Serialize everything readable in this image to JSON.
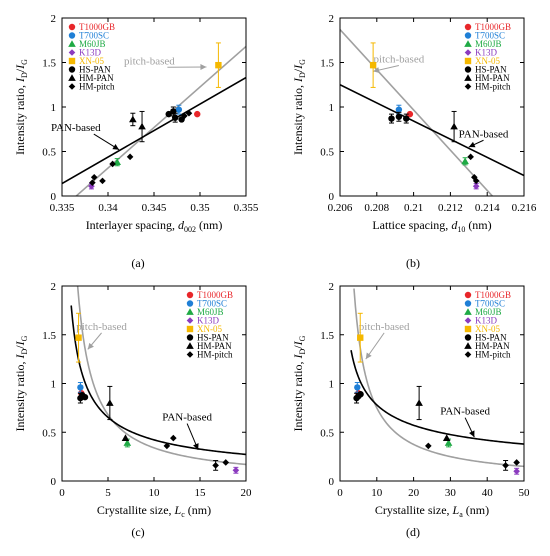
{
  "colors": {
    "T1000GB": "#e8262a",
    "T700SC": "#1f7fd6",
    "M60JB": "#1faa45",
    "K13D": "#8b3bbf",
    "XN-05": "#f5b800",
    "black": "#000000",
    "pitch_fit": "#a0a0a0",
    "pan_fit": "#000000"
  },
  "legend": [
    {
      "label": "T1000GB",
      "marker": "circle",
      "color_key": "T1000GB"
    },
    {
      "label": "T700SC",
      "marker": "circle",
      "color_key": "T700SC"
    },
    {
      "label": "M60JB",
      "marker": "triangle",
      "color_key": "M60JB"
    },
    {
      "label": "K13D",
      "marker": "diamond",
      "color_key": "K13D"
    },
    {
      "label": "XN-05",
      "marker": "square",
      "color_key": "XN-05"
    },
    {
      "label": "HS-PAN",
      "marker": "circle",
      "color_key": "black"
    },
    {
      "label": "HM-PAN",
      "marker": "triangle",
      "color_key": "black"
    },
    {
      "label": "HM-pitch",
      "marker": "diamond",
      "color_key": "black"
    }
  ],
  "chart_data": [
    {
      "type": "scatter",
      "panel": "(a)",
      "xlabel_main": "Interlayer spacing, ",
      "xlabel_sym": "d",
      "xlabel_sub": "002",
      "xlabel_unit": " (nm)",
      "ylabel_main": "Intensity ratio, ",
      "ylabel_sym1": "I",
      "ylabel_sub1": "D",
      "ylabel_slash": "/",
      "ylabel_sym2": "I",
      "ylabel_sub2": "G",
      "xlim": [
        0.335,
        0.355
      ],
      "ylim": [
        0,
        2
      ],
      "xticks": [
        0.335,
        0.34,
        0.345,
        0.35,
        0.355
      ],
      "xtick_labels": [
        "0.335",
        "0.34",
        "0.345",
        "0.35",
        "0.355"
      ],
      "yticks": [
        0,
        0.5,
        1,
        1.5,
        2
      ],
      "ytick_labels": [
        "0",
        "0.5",
        "1",
        "1.5",
        "2"
      ],
      "legend_position": "top-left",
      "fits": [
        {
          "label": "pitch-based",
          "color_key": "pitch_fit",
          "kind": "linear",
          "x": [
            0.336,
            0.355
          ],
          "y": [
            -0.05,
            1.68
          ]
        },
        {
          "label": "PAN-based",
          "color_key": "pan_fit",
          "kind": "linear",
          "x": [
            0.335,
            0.355
          ],
          "y": [
            0.14,
            1.33
          ]
        }
      ],
      "annotations": [
        {
          "text": "pitch-based",
          "color_key": "pitch_fit",
          "x": 0.3445,
          "y": 1.48,
          "arrow_to": [
            0.3507,
            1.45
          ]
        },
        {
          "text": "PAN-based",
          "color_key": "black",
          "x": 0.3365,
          "y": 0.73,
          "arrow_to": [
            0.3412,
            0.52
          ]
        }
      ],
      "points": [
        {
          "series": "T1000GB",
          "marker": "circle",
          "color_key": "T1000GB",
          "x": 0.3497,
          "y": 0.92
        },
        {
          "series": "T700SC",
          "marker": "circle",
          "color_key": "T700SC",
          "x": 0.3477,
          "y": 0.97,
          "err": 0.05
        },
        {
          "series": "M60JB",
          "marker": "triangle",
          "color_key": "M60JB",
          "x": 0.341,
          "y": 0.38,
          "err": 0.04
        },
        {
          "series": "K13D",
          "marker": "diamond",
          "color_key": "K13D",
          "x": 0.3382,
          "y": 0.11,
          "err": 0.03
        },
        {
          "series": "XN-05",
          "marker": "square",
          "color_key": "XN-05",
          "x": 0.352,
          "y": 1.47,
          "err": 0.25
        },
        {
          "series": "HS-PAN",
          "marker": "circle",
          "color_key": "black",
          "x": 0.3466,
          "y": 0.92
        },
        {
          "series": "HS-PAN",
          "marker": "circle",
          "color_key": "black",
          "x": 0.3473,
          "y": 0.88,
          "err": 0.05
        },
        {
          "series": "HS-PAN",
          "marker": "circle",
          "color_key": "black",
          "x": 0.348,
          "y": 0.86
        },
        {
          "series": "HS-PAN",
          "marker": "circle",
          "color_key": "black",
          "x": 0.3471,
          "y": 0.95,
          "err": 0.05
        },
        {
          "series": "HM-PAN",
          "marker": "triangle",
          "color_key": "black",
          "x": 0.3427,
          "y": 0.86,
          "err": 0.07
        },
        {
          "series": "HM-PAN",
          "marker": "triangle",
          "color_key": "black",
          "x": 0.3437,
          "y": 0.78,
          "err": 0.17
        },
        {
          "series": "HM-pitch",
          "marker": "diamond",
          "color_key": "black",
          "x": 0.3385,
          "y": 0.21
        },
        {
          "series": "HM-pitch",
          "marker": "diamond",
          "color_key": "black",
          "x": 0.3383,
          "y": 0.15
        },
        {
          "series": "HM-pitch",
          "marker": "diamond",
          "color_key": "black",
          "x": 0.3394,
          "y": 0.17
        },
        {
          "series": "HM-pitch",
          "marker": "diamond",
          "color_key": "black",
          "x": 0.3405,
          "y": 0.36
        },
        {
          "series": "HM-pitch",
          "marker": "diamond",
          "color_key": "black",
          "x": 0.3424,
          "y": 0.44
        },
        {
          "series": "HM-pitch",
          "marker": "diamond",
          "color_key": "black",
          "x": 0.3483,
          "y": 0.9
        },
        {
          "series": "HM-pitch",
          "marker": "diamond",
          "color_key": "black",
          "x": 0.3488,
          "y": 0.93
        }
      ]
    },
    {
      "type": "scatter",
      "panel": "(b)",
      "xlabel_main": "Lattice spacing, ",
      "xlabel_sym": "d",
      "xlabel_sub": "10",
      "xlabel_unit": " (nm)",
      "ylabel_main": "Intensity ratio, ",
      "ylabel_sym1": "I",
      "ylabel_sub1": "D",
      "ylabel_slash": "/",
      "ylabel_sym2": "I",
      "ylabel_sub2": "G",
      "xlim": [
        0.206,
        0.216
      ],
      "ylim": [
        0,
        2
      ],
      "xticks": [
        0.206,
        0.208,
        0.21,
        0.212,
        0.214,
        0.216
      ],
      "xtick_labels": [
        "0.206",
        "0.208",
        "0.21",
        "0.212",
        "0.214",
        "0.216"
      ],
      "yticks": [
        0,
        0.5,
        1,
        1.5,
        2
      ],
      "ytick_labels": [
        "0",
        "0.5",
        "1",
        "1.5",
        "2"
      ],
      "legend_position": "top-right",
      "fits": [
        {
          "label": "pitch-based",
          "color_key": "pitch_fit",
          "kind": "linear",
          "x": [
            0.206,
            0.2145
          ],
          "y": [
            1.87,
            -0.05
          ]
        },
        {
          "label": "PAN-based",
          "color_key": "pan_fit",
          "kind": "linear",
          "x": [
            0.206,
            0.216
          ],
          "y": [
            1.25,
            0.23
          ]
        }
      ],
      "annotations": [
        {
          "text": "pitch-based",
          "color_key": "pitch_fit",
          "x": 0.2092,
          "y": 1.5,
          "arrow_to": [
            0.2078,
            1.4
          ]
        },
        {
          "text": "PAN-based",
          "color_key": "black",
          "x": 0.2138,
          "y": 0.66,
          "arrow_to": [
            0.213,
            0.55
          ]
        }
      ],
      "points": [
        {
          "series": "T1000GB",
          "marker": "circle",
          "color_key": "T1000GB",
          "x": 0.2098,
          "y": 0.92
        },
        {
          "series": "T700SC",
          "marker": "circle",
          "color_key": "T700SC",
          "x": 0.2092,
          "y": 0.97,
          "err": 0.05
        },
        {
          "series": "M60JB",
          "marker": "triangle",
          "color_key": "M60JB",
          "x": 0.2128,
          "y": 0.39,
          "err": 0.04
        },
        {
          "series": "K13D",
          "marker": "diamond",
          "color_key": "K13D",
          "x": 0.2134,
          "y": 0.11,
          "err": 0.03
        },
        {
          "series": "XN-05",
          "marker": "square",
          "color_key": "XN-05",
          "x": 0.2078,
          "y": 1.47,
          "err": 0.25
        },
        {
          "series": "HS-PAN",
          "marker": "circle",
          "color_key": "black",
          "x": 0.2088,
          "y": 0.87,
          "err": 0.05
        },
        {
          "series": "HS-PAN",
          "marker": "circle",
          "color_key": "black",
          "x": 0.2092,
          "y": 0.89,
          "err": 0.05
        },
        {
          "series": "HS-PAN",
          "marker": "circle",
          "color_key": "black",
          "x": 0.2096,
          "y": 0.87,
          "err": 0.05
        },
        {
          "series": "HM-PAN",
          "marker": "triangle",
          "color_key": "black",
          "x": 0.2122,
          "y": 0.78,
          "err": 0.17
        },
        {
          "series": "HM-pitch",
          "marker": "diamond",
          "color_key": "black",
          "x": 0.2131,
          "y": 0.44
        },
        {
          "series": "HM-pitch",
          "marker": "diamond",
          "color_key": "black",
          "x": 0.2134,
          "y": 0.17
        },
        {
          "series": "HM-pitch",
          "marker": "diamond",
          "color_key": "black",
          "x": 0.2133,
          "y": 0.21
        }
      ]
    },
    {
      "type": "scatter",
      "panel": "(c)",
      "xlabel_main": "Crystallite size, ",
      "xlabel_sym": "L",
      "xlabel_sub": "c",
      "xlabel_unit": " (nm)",
      "ylabel_main": "Intensity ratio, ",
      "ylabel_sym1": "I",
      "ylabel_sub1": "D",
      "ylabel_slash": "/",
      "ylabel_sym2": "I",
      "ylabel_sub2": "G",
      "xlim": [
        0,
        20
      ],
      "ylim": [
        0,
        2
      ],
      "xticks": [
        0,
        5,
        10,
        15,
        20
      ],
      "xtick_labels": [
        "0",
        "5",
        "10",
        "15",
        "20"
      ],
      "yticks": [
        0,
        0.5,
        1,
        1.5,
        2
      ],
      "ytick_labels": [
        "0",
        "0.5",
        "1",
        "1.5",
        "2"
      ],
      "legend_position": "top-right",
      "fits": [
        {
          "label": "pitch-based",
          "color_key": "pitch_fit",
          "kind": "power",
          "a": 3.4,
          "b": -1.0,
          "xrange": [
            1.7,
            20
          ]
        },
        {
          "label": "PAN-based",
          "color_key": "pan_fit",
          "kind": "power",
          "a": 1.8,
          "b": -0.63,
          "xrange": [
            1.0,
            20
          ]
        }
      ],
      "annotations": [
        {
          "text": "pitch-based",
          "color_key": "pitch_fit",
          "x": 4.3,
          "y": 1.55,
          "arrow_to": [
            2.8,
            1.35
          ]
        },
        {
          "text": "PAN-based",
          "color_key": "black",
          "x": 13.6,
          "y": 0.62,
          "arrow_to": [
            14.8,
            0.32
          ]
        }
      ],
      "points": [
        {
          "series": "T1000GB",
          "marker": "circle",
          "color_key": "T1000GB",
          "x": 2.1,
          "y": 0.9
        },
        {
          "series": "T700SC",
          "marker": "circle",
          "color_key": "T700SC",
          "x": 2.0,
          "y": 0.96,
          "err": 0.05
        },
        {
          "series": "M60JB",
          "marker": "triangle",
          "color_key": "M60JB",
          "x": 7.1,
          "y": 0.39,
          "err": 0.04
        },
        {
          "series": "K13D",
          "marker": "diamond",
          "color_key": "K13D",
          "x": 18.9,
          "y": 0.11,
          "err": 0.03
        },
        {
          "series": "XN-05",
          "marker": "square",
          "color_key": "XN-05",
          "x": 1.8,
          "y": 1.47,
          "err": 0.25
        },
        {
          "series": "HS-PAN",
          "marker": "circle",
          "color_key": "black",
          "x": 2.0,
          "y": 0.85,
          "err": 0.05
        },
        {
          "series": "HS-PAN",
          "marker": "circle",
          "color_key": "black",
          "x": 2.2,
          "y": 0.88
        },
        {
          "series": "HS-PAN",
          "marker": "circle",
          "color_key": "black",
          "x": 2.5,
          "y": 0.86
        },
        {
          "series": "HM-PAN",
          "marker": "triangle",
          "color_key": "black",
          "x": 5.2,
          "y": 0.8,
          "err": 0.17
        },
        {
          "series": "HM-PAN",
          "marker": "triangle",
          "color_key": "black",
          "x": 6.9,
          "y": 0.44
        },
        {
          "series": "HM-pitch",
          "marker": "diamond",
          "color_key": "black",
          "x": 11.4,
          "y": 0.36
        },
        {
          "series": "HM-pitch",
          "marker": "diamond",
          "color_key": "black",
          "x": 12.1,
          "y": 0.44
        },
        {
          "series": "HM-pitch",
          "marker": "diamond",
          "color_key": "black",
          "x": 16.7,
          "y": 0.16,
          "err": 0.05
        },
        {
          "series": "HM-pitch",
          "marker": "diamond",
          "color_key": "black",
          "x": 17.8,
          "y": 0.19
        }
      ]
    },
    {
      "type": "scatter",
      "panel": "(d)",
      "xlabel_main": "Crystallite size, ",
      "xlabel_sym": "L",
      "xlabel_sub": "a",
      "xlabel_unit": " (nm)",
      "ylabel_main": "Intensity ratio, ",
      "ylabel_sym1": "I",
      "ylabel_sub1": "D",
      "ylabel_slash": "/",
      "ylabel_sym2": "I",
      "ylabel_sub2": "G",
      "xlim": [
        0,
        50
      ],
      "ylim": [
        0,
        2
      ],
      "xticks": [
        0,
        10,
        20,
        30,
        40,
        50
      ],
      "xtick_labels": [
        "0",
        "10",
        "20",
        "30",
        "40",
        "50"
      ],
      "yticks": [
        0,
        0.5,
        1,
        1.5,
        2
      ],
      "ytick_labels": [
        "0",
        "0.5",
        "1",
        "1.5",
        "2"
      ],
      "legend_position": "top-right",
      "fits": [
        {
          "label": "pitch-based",
          "color_key": "pitch_fit",
          "kind": "power",
          "a": 7.5,
          "b": -1.0,
          "xrange": [
            3.8,
            50
          ]
        },
        {
          "label": "PAN-based",
          "color_key": "pan_fit",
          "kind": "power",
          "a": 2.2,
          "b": -0.45,
          "xrange": [
            3.0,
            50
          ]
        }
      ],
      "annotations": [
        {
          "text": "pitch-based",
          "color_key": "pitch_fit",
          "x": 12.0,
          "y": 1.55,
          "arrow_to": [
            7.0,
            1.25
          ]
        },
        {
          "text": "PAN-based",
          "color_key": "black",
          "x": 34.0,
          "y": 0.68,
          "arrow_to": [
            36.5,
            0.45
          ]
        }
      ],
      "points": [
        {
          "series": "T1000GB",
          "marker": "circle",
          "color_key": "T1000GB",
          "x": 5.0,
          "y": 0.9
        },
        {
          "series": "T700SC",
          "marker": "circle",
          "color_key": "T700SC",
          "x": 4.7,
          "y": 0.96,
          "err": 0.05
        },
        {
          "series": "M60JB",
          "marker": "triangle",
          "color_key": "M60JB",
          "x": 29.5,
          "y": 0.39,
          "err": 0.04
        },
        {
          "series": "K13D",
          "marker": "diamond",
          "color_key": "K13D",
          "x": 48.0,
          "y": 0.1,
          "err": 0.03
        },
        {
          "series": "XN-05",
          "marker": "square",
          "color_key": "XN-05",
          "x": 5.5,
          "y": 1.47,
          "err": 0.25
        },
        {
          "series": "HS-PAN",
          "marker": "circle",
          "color_key": "black",
          "x": 4.5,
          "y": 0.85,
          "err": 0.05
        },
        {
          "series": "HS-PAN",
          "marker": "circle",
          "color_key": "black",
          "x": 5.0,
          "y": 0.87
        },
        {
          "series": "HS-PAN",
          "marker": "circle",
          "color_key": "black",
          "x": 5.6,
          "y": 0.89
        },
        {
          "series": "HM-PAN",
          "marker": "triangle",
          "color_key": "black",
          "x": 21.5,
          "y": 0.8,
          "err": 0.17
        },
        {
          "series": "HM-PAN",
          "marker": "triangle",
          "color_key": "black",
          "x": 29.0,
          "y": 0.44
        },
        {
          "series": "HM-pitch",
          "marker": "diamond",
          "color_key": "black",
          "x": 24.0,
          "y": 0.36
        },
        {
          "series": "HM-pitch",
          "marker": "diamond",
          "color_key": "black",
          "x": 45.0,
          "y": 0.16,
          "err": 0.05
        },
        {
          "series": "HM-pitch",
          "marker": "diamond",
          "color_key": "black",
          "x": 48.0,
          "y": 0.19
        }
      ]
    }
  ]
}
